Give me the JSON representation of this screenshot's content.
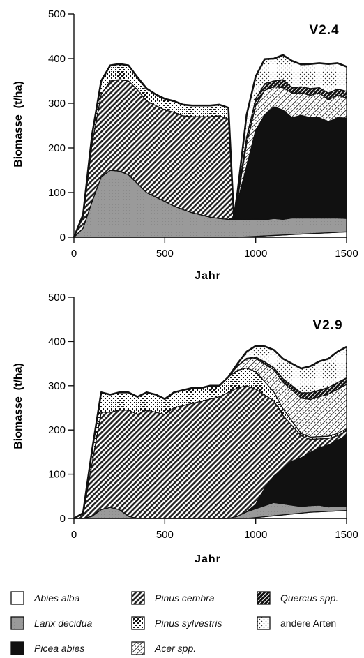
{
  "chart_data": [
    {
      "type": "area",
      "stacked": true,
      "title": "V2.4",
      "xlabel": "Jahr",
      "ylabel": "Biomasse  (t/ha)",
      "xlim": [
        0,
        1500
      ],
      "ylim": [
        0,
        500
      ],
      "xticks": [
        "0",
        "500",
        "1000",
        "1500"
      ],
      "yticks": [
        "0",
        "100",
        "200",
        "300",
        "400",
        "500"
      ],
      "x": [
        0,
        50,
        100,
        150,
        200,
        250,
        300,
        350,
        400,
        450,
        500,
        550,
        600,
        650,
        700,
        750,
        800,
        850,
        880,
        900,
        950,
        1000,
        1050,
        1100,
        1150,
        1200,
        1250,
        1300,
        1350,
        1400,
        1450,
        1500
      ],
      "series": [
        {
          "name": "Abies alba",
          "values": [
            0,
            0,
            0,
            0,
            0,
            0,
            0,
            0,
            0,
            0,
            0,
            0,
            0,
            0,
            0,
            0,
            0,
            0,
            0,
            0,
            1,
            2,
            3,
            4,
            5,
            6,
            7,
            8,
            9,
            10,
            11,
            12
          ]
        },
        {
          "name": "Larix decidua",
          "values": [
            0,
            20,
            80,
            135,
            150,
            148,
            140,
            120,
            100,
            90,
            80,
            70,
            62,
            55,
            50,
            45,
            42,
            40,
            40,
            40,
            38,
            38,
            36,
            38,
            35,
            37,
            36,
            35,
            34,
            33,
            32,
            30
          ]
        },
        {
          "name": "Picea abies",
          "values": [
            0,
            0,
            0,
            0,
            0,
            0,
            0,
            0,
            0,
            0,
            0,
            0,
            0,
            0,
            0,
            0,
            0,
            0,
            5,
            40,
            120,
            200,
            235,
            250,
            245,
            225,
            230,
            225,
            225,
            215,
            225,
            225
          ]
        },
        {
          "name": "Pinus cembra",
          "values": [
            0,
            25,
            130,
            185,
            200,
            205,
            210,
            210,
            205,
            205,
            205,
            210,
            210,
            215,
            220,
            225,
            230,
            225,
            0,
            0,
            0,
            0,
            0,
            0,
            0,
            0,
            0,
            0,
            0,
            0,
            0,
            0
          ]
        },
        {
          "name": "Pinus sylvestris",
          "values": [
            0,
            5,
            20,
            30,
            35,
            35,
            35,
            28,
            28,
            25,
            25,
            25,
            25,
            25,
            25,
            25,
            25,
            25,
            0,
            0,
            0,
            0,
            0,
            0,
            0,
            0,
            0,
            0,
            0,
            0,
            0,
            0
          ]
        },
        {
          "name": "Acer spp.",
          "values": [
            0,
            0,
            0,
            0,
            0,
            0,
            0,
            0,
            0,
            0,
            0,
            0,
            0,
            0,
            0,
            0,
            0,
            0,
            0,
            5,
            50,
            55,
            55,
            45,
            50,
            55,
            50,
            50,
            55,
            50,
            50,
            45
          ]
        },
        {
          "name": "Quercus spp.",
          "values": [
            0,
            0,
            0,
            0,
            0,
            0,
            0,
            0,
            0,
            0,
            0,
            0,
            0,
            0,
            0,
            0,
            0,
            0,
            0,
            5,
            15,
            15,
            15,
            13,
            18,
            12,
            14,
            15,
            12,
            15,
            14,
            15
          ]
        },
        {
          "name": "andere Arten",
          "values": [
            0,
            0,
            0,
            0,
            0,
            0,
            0,
            0,
            0,
            0,
            0,
            0,
            0,
            0,
            0,
            0,
            0,
            0,
            0,
            10,
            50,
            50,
            55,
            50,
            55,
            60,
            50,
            55,
            55,
            65,
            58,
            55
          ]
        }
      ]
    },
    {
      "type": "area",
      "stacked": true,
      "title": "V2.9",
      "xlabel": "Jahr",
      "ylabel": "Biomasse  (t/ha)",
      "xlim": [
        0,
        1500
      ],
      "ylim": [
        0,
        500
      ],
      "xticks": [
        "0",
        "500",
        "1000",
        "1500"
      ],
      "yticks": [
        "0",
        "100",
        "200",
        "300",
        "400",
        "500"
      ],
      "x": [
        0,
        50,
        100,
        150,
        200,
        250,
        300,
        350,
        400,
        450,
        500,
        550,
        600,
        650,
        700,
        750,
        800,
        850,
        900,
        950,
        1000,
        1050,
        1100,
        1150,
        1200,
        1250,
        1300,
        1350,
        1400,
        1450,
        1500
      ],
      "series": [
        {
          "name": "Abies alba",
          "values": [
            0,
            0,
            0,
            0,
            0,
            0,
            0,
            0,
            0,
            0,
            0,
            0,
            0,
            0,
            0,
            0,
            0,
            0,
            0,
            0,
            2,
            4,
            6,
            8,
            10,
            12,
            14,
            15,
            16,
            17,
            18
          ]
        },
        {
          "name": "Larix decidua",
          "values": [
            0,
            0,
            5,
            20,
            25,
            20,
            5,
            0,
            0,
            0,
            0,
            0,
            0,
            0,
            0,
            0,
            0,
            0,
            5,
            15,
            20,
            25,
            30,
            25,
            20,
            15,
            15,
            15,
            10,
            10,
            10
          ]
        },
        {
          "name": "Picea abies",
          "values": [
            0,
            0,
            0,
            0,
            0,
            0,
            0,
            0,
            0,
            0,
            0,
            0,
            0,
            0,
            0,
            0,
            0,
            0,
            0,
            0,
            10,
            40,
            60,
            80,
            100,
            110,
            120,
            130,
            140,
            150,
            160
          ]
        },
        {
          "name": "Pinus cembra",
          "values": [
            0,
            10,
            120,
            220,
            215,
            225,
            240,
            235,
            245,
            240,
            235,
            250,
            255,
            260,
            265,
            270,
            275,
            285,
            290,
            285,
            260,
            210,
            170,
            120,
            80,
            50,
            30,
            20,
            15,
            10,
            10
          ]
        },
        {
          "name": "Pinus sylvestris",
          "values": [
            0,
            2,
            30,
            45,
            40,
            40,
            40,
            40,
            40,
            40,
            35,
            35,
            35,
            35,
            30,
            30,
            25,
            35,
            40,
            40,
            40,
            30,
            20,
            15,
            10,
            5,
            5,
            5,
            5,
            5,
            5
          ]
        },
        {
          "name": "Acer spp.",
          "values": [
            0,
            0,
            0,
            0,
            0,
            0,
            0,
            0,
            0,
            0,
            0,
            0,
            0,
            0,
            0,
            0,
            0,
            0,
            10,
            20,
            30,
            40,
            50,
            60,
            70,
            80,
            85,
            90,
            95,
            100,
            100
          ]
        },
        {
          "name": "Quercus spp.",
          "values": [
            0,
            0,
            0,
            0,
            0,
            0,
            0,
            0,
            0,
            0,
            0,
            0,
            0,
            0,
            0,
            0,
            0,
            0,
            0,
            2,
            3,
            5,
            5,
            8,
            10,
            12,
            15,
            15,
            15,
            15,
            15
          ]
        },
        {
          "name": "andere Arten",
          "values": [
            0,
            0,
            0,
            0,
            0,
            0,
            0,
            0,
            0,
            0,
            0,
            0,
            0,
            0,
            0,
            0,
            0,
            0,
            5,
            15,
            25,
            35,
            40,
            45,
            50,
            55,
            60,
            65,
            65,
            70,
            70
          ]
        }
      ]
    }
  ],
  "legend": [
    {
      "label": "Abies alba",
      "fill": "abies",
      "italic": true
    },
    {
      "label": "Pinus cembra",
      "fill": "cembra",
      "italic": true
    },
    {
      "label": "Quercus spp.",
      "fill": "quercus",
      "italic": true
    },
    {
      "label": "Larix decidua",
      "fill": "larix",
      "italic": true
    },
    {
      "label": "Pinus sylvestris",
      "fill": "sylvestris",
      "italic": true
    },
    {
      "label": "andere Arten",
      "fill": "andere",
      "italic": false
    },
    {
      "label": "Picea abies",
      "fill": "picea",
      "italic": true
    },
    {
      "label": "Acer spp.",
      "fill": "acer",
      "italic": true
    }
  ],
  "colors": {
    "larix": "#9a9a9a",
    "picea": "#111111",
    "ink": "#111111"
  }
}
